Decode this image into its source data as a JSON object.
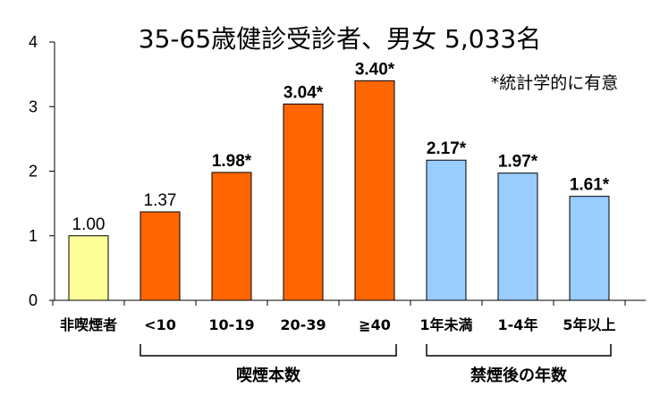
{
  "chart_data": {
    "type": "bar",
    "title": "35-65歳健診受診者、男女 5,033名",
    "note": "*統計学的に有意",
    "categories": [
      "非喫煙者",
      "<10",
      "10-19",
      "20-39",
      "≧40",
      "1年未満",
      "1-4年",
      "5年以上"
    ],
    "values": [
      1.0,
      1.37,
      1.98,
      3.04,
      3.4,
      2.17,
      1.97,
      1.61
    ],
    "data_labels": [
      "1.00",
      "1.37",
      "1.98*",
      "3.04*",
      "3.40*",
      "2.17*",
      "1.97*",
      "1.61*"
    ],
    "significant": [
      false,
      false,
      true,
      true,
      true,
      true,
      true,
      true
    ],
    "bar_colors": [
      "#ffff99",
      "#ff6600",
      "#ff6600",
      "#ff6600",
      "#ff6600",
      "#99ccff",
      "#99ccff",
      "#99ccff"
    ],
    "yticks": [
      "0",
      "1",
      "2",
      "3",
      "4"
    ],
    "ylim": [
      0,
      4
    ],
    "groups": [
      {
        "label": "喫煙本数",
        "from": 1,
        "to": 4
      },
      {
        "label": "禁煙後の年数",
        "from": 5,
        "to": 7
      }
    ],
    "grid": false
  }
}
